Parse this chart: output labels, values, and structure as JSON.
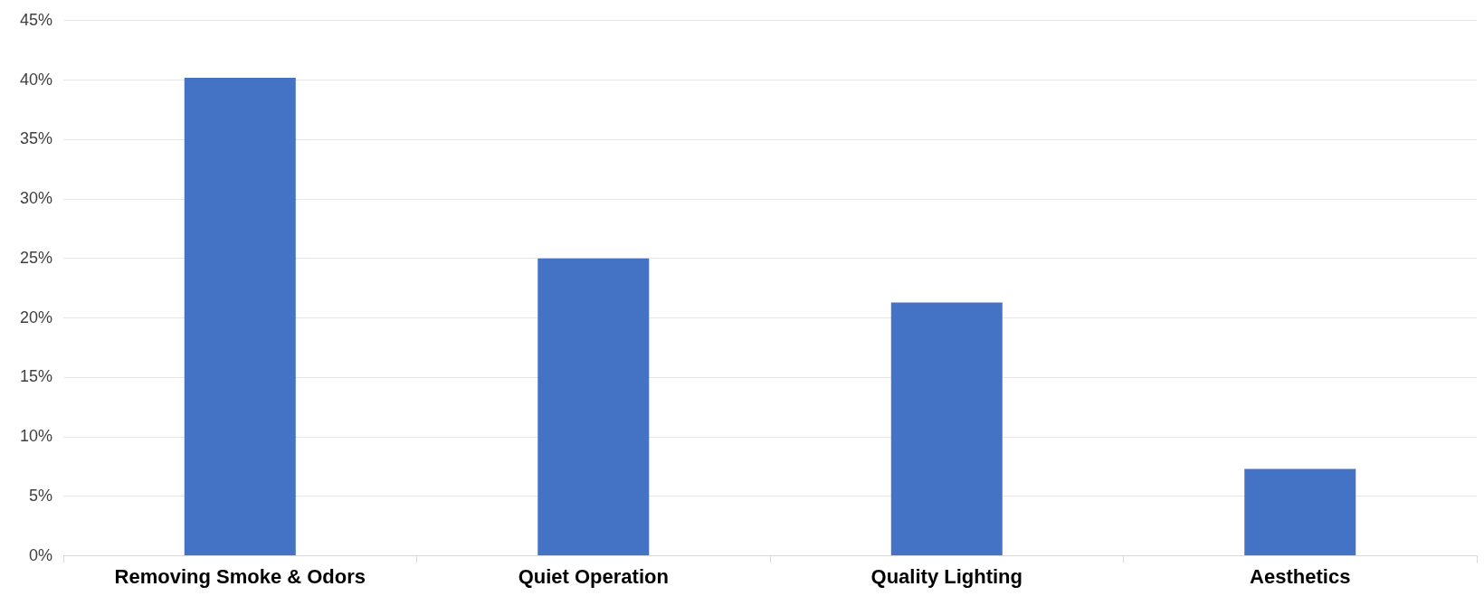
{
  "chart_data": {
    "type": "bar",
    "categories": [
      "Removing Smoke & Odors",
      "Quiet Operation",
      "Quality Lighting",
      "Aesthetics"
    ],
    "values": [
      40.2,
      25,
      21.3,
      7.3
    ],
    "color": "#4472c4",
    "ylim": [
      0,
      45
    ],
    "yticks": [
      {
        "value": 0,
        "label": "0%"
      },
      {
        "value": 5,
        "label": "5%"
      },
      {
        "value": 10,
        "label": "10%"
      },
      {
        "value": 15,
        "label": "15%"
      },
      {
        "value": 20,
        "label": "20%"
      },
      {
        "value": 25,
        "label": "25%"
      },
      {
        "value": 30,
        "label": "30%"
      },
      {
        "value": 35,
        "label": "35%"
      },
      {
        "value": 40,
        "label": "40%"
      },
      {
        "value": 45,
        "label": "45%"
      }
    ],
    "grid": "y",
    "legend": false
  }
}
